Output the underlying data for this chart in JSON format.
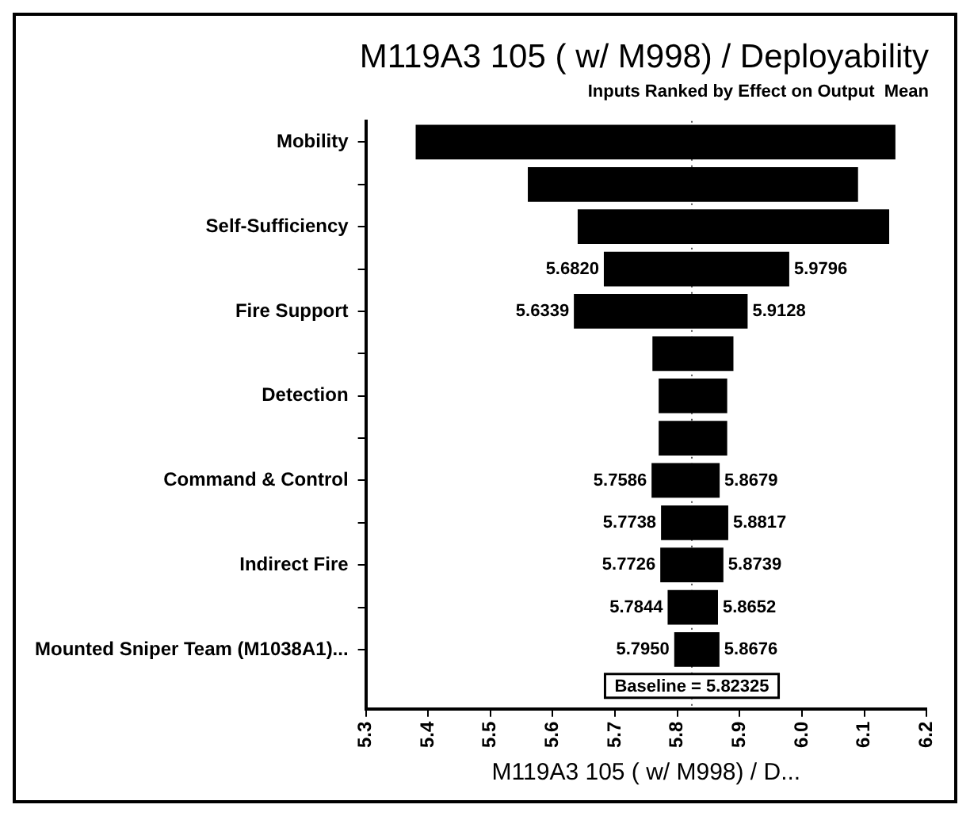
{
  "chart_data": {
    "type": "bar",
    "orientation": "horizontal",
    "title": "M119A3 105 ( w/ M998) / Deployability",
    "subtitle": "Inputs Ranked by Effect on Output  Mean",
    "xlabel": "M119A3 105 ( w/ M998) / D...",
    "categories": [
      "Mobility",
      null,
      "Self-Sufficiency",
      null,
      "Fire Support",
      null,
      "Detection",
      null,
      "Command & Control",
      null,
      "Indirect Fire",
      null,
      "Mounted Sniper Team (M1038A1)..."
    ],
    "series": [
      {
        "color": "#000000",
        "base": [
          5.82325,
          5.82325,
          5.82325,
          5.82325,
          5.82325,
          5.82325,
          5.82325,
          5.82325,
          5.82325,
          5.82325,
          5.82325,
          5.82325,
          5.82325
        ],
        "values": [
          -0.44325,
          -0.26325,
          -0.18325,
          -0.14125,
          -0.18935,
          -0.06325,
          -0.05325,
          -0.05325,
          -0.06465,
          -0.04945,
          -0.05065,
          -0.03885,
          -0.02825
        ],
        "value_labels": [
          null,
          null,
          null,
          "5.6820",
          "5.6339",
          null,
          null,
          null,
          "5.7586",
          "5.7738",
          "5.7726",
          "5.7844",
          "5.7950"
        ]
      },
      {
        "color": "#000000",
        "base": [
          5.82325,
          5.82325,
          5.82325,
          5.82325,
          5.82325,
          5.82325,
          5.82325,
          5.82325,
          5.82325,
          5.82325,
          5.82325,
          5.82325,
          5.82325
        ],
        "values": [
          0.32675,
          0.26675,
          0.31675,
          0.15635,
          0.08955,
          0.06675,
          0.05675,
          0.05675,
          0.04465,
          0.05845,
          0.05065,
          0.04195,
          0.04435
        ],
        "value_labels": [
          null,
          null,
          null,
          "5.9796",
          "5.9128",
          null,
          null,
          null,
          "5.8679",
          "5.8817",
          "5.8739",
          "5.8652",
          "5.8676"
        ]
      }
    ],
    "xlim": [
      5.3,
      6.2
    ],
    "xticks": [
      5.3,
      5.4,
      5.5,
      5.6,
      5.7,
      5.8,
      5.9,
      {
        "value": 6,
        "label": "6.0"
      },
      6.1,
      6.2
    ],
    "ref_lines": [
      {
        "axis": "x",
        "value": 5.82325,
        "label": "Baseline = 5.82325",
        "line_style": "dotted",
        "color": "#555555"
      }
    ],
    "grid": false,
    "legend": false
  }
}
